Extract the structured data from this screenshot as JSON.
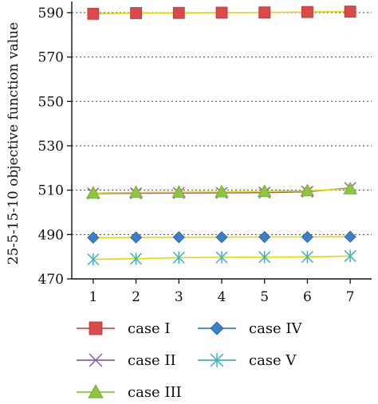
{
  "chart_data": {
    "type": "line",
    "ylabel": "25-5-15-10 objective function value",
    "xlabel": "",
    "x": [
      1,
      2,
      3,
      4,
      5,
      6,
      7
    ],
    "xticks": [
      "1",
      "2",
      "3",
      "4",
      "5",
      "6",
      "7"
    ],
    "ylim": [
      470,
      595
    ],
    "yticks": [
      470,
      490,
      510,
      530,
      550,
      570,
      590
    ],
    "grid": "horizontal dotted",
    "legend_position": "bottom",
    "series": [
      {
        "name": "case I",
        "marker": "square",
        "color": "#d94a4a",
        "line_color": "#e6d800",
        "values": [
          589.5,
          589.8,
          589.9,
          590.0,
          590.1,
          590.3,
          590.5
        ]
      },
      {
        "name": "case II",
        "marker": "x",
        "color": "#8b5ca8",
        "line_color": "#8b5ca8",
        "values": [
          508.5,
          508.6,
          508.7,
          508.8,
          508.9,
          509.3,
          511.0
        ]
      },
      {
        "name": "case III",
        "marker": "triangle",
        "color": "#8dc63f",
        "line_color": "#e6d800",
        "values": [
          508.7,
          509.0,
          509.1,
          509.2,
          509.4,
          509.7,
          510.6
        ]
      },
      {
        "name": "case IV",
        "marker": "diamond",
        "color": "#3a7fc7",
        "line_color": "#e6d800",
        "values": [
          488.6,
          488.7,
          488.8,
          488.8,
          488.9,
          488.9,
          489.0
        ]
      },
      {
        "name": "case V",
        "marker": "asterisk",
        "color": "#3bb3c3",
        "line_color": "#e6d800",
        "values": [
          478.8,
          479.1,
          479.6,
          479.7,
          479.8,
          479.9,
          480.3
        ]
      }
    ]
  }
}
